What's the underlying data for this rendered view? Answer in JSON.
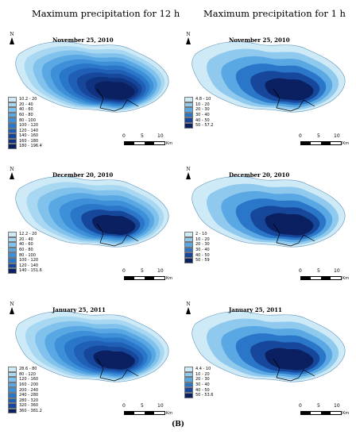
{
  "titles": {
    "left": "Maximum precipitation for 12 h",
    "right": "Maximum precipitation for 1 h"
  },
  "north_label": "N",
  "scale": {
    "ticks": [
      "0",
      "5",
      "10"
    ],
    "unit": "Km"
  },
  "figure_label": "(B)",
  "panels": [
    {
      "id": "12h-nov",
      "date": "November 25, 2010",
      "legend": [
        "10.2 - 20",
        "20 - 40",
        "40 - 60",
        "60 - 80",
        "80 - 100",
        "100 - 120",
        "120 - 140",
        "140 - 160",
        "160 - 180",
        "180 - 196.4"
      ],
      "colors": [
        "#cfeaf7",
        "#a8d7f2",
        "#80c2ec",
        "#5aa8e3",
        "#3d8fd8",
        "#2a76c9",
        "#1f5fb5",
        "#17479b",
        "#10337f",
        "#0a2060"
      ]
    },
    {
      "id": "1h-nov",
      "date": "November 25, 2010",
      "legend": [
        "4.8 - 10",
        "10 - 20",
        "20 - 30",
        "30 - 40",
        "40 - 50",
        "50 - 57.2"
      ],
      "colors": [
        "#cfeaf7",
        "#8fc9ee",
        "#5aa8e3",
        "#2a76c9",
        "#17479b",
        "#0a2060"
      ]
    },
    {
      "id": "12h-dec",
      "date": "December 20, 2010",
      "legend": [
        "12.2 - 20",
        "20 - 40",
        "40 - 60",
        "60 - 80",
        "80 - 100",
        "100 - 120",
        "120 - 140",
        "140 - 151.6"
      ],
      "colors": [
        "#cfeaf7",
        "#a8d7f2",
        "#80c2ec",
        "#5aa8e3",
        "#3d8fd8",
        "#2a76c9",
        "#17479b",
        "#0a2060"
      ]
    },
    {
      "id": "1h-dec",
      "date": "December 20, 2010",
      "legend": [
        "2 - 10",
        "10 - 20",
        "20 - 30",
        "30 - 40",
        "40 - 50",
        "50 - 59"
      ],
      "colors": [
        "#cfeaf7",
        "#8fc9ee",
        "#5aa8e3",
        "#2a76c9",
        "#17479b",
        "#0a2060"
      ]
    },
    {
      "id": "12h-jan",
      "date": "January 25, 2011",
      "legend": [
        "28.6 - 80",
        "80 - 120",
        "120 - 160",
        "160 - 200",
        "200 - 240",
        "240 - 280",
        "280 - 320",
        "320 - 360",
        "360 - 381.2"
      ],
      "colors": [
        "#cfeaf7",
        "#a8d7f2",
        "#80c2ec",
        "#5aa8e3",
        "#3d8fd8",
        "#2a76c9",
        "#1f5fb5",
        "#17479b",
        "#0a2060"
      ]
    },
    {
      "id": "1h-jan",
      "date": "January 25, 2011",
      "legend": [
        "4.4 - 10",
        "10 - 20",
        "20 - 30",
        "30 - 40",
        "40 - 50",
        "50 - 53.6"
      ],
      "colors": [
        "#cfeaf7",
        "#8fc9ee",
        "#5aa8e3",
        "#2a76c9",
        "#17479b",
        "#0a2060"
      ]
    }
  ]
}
